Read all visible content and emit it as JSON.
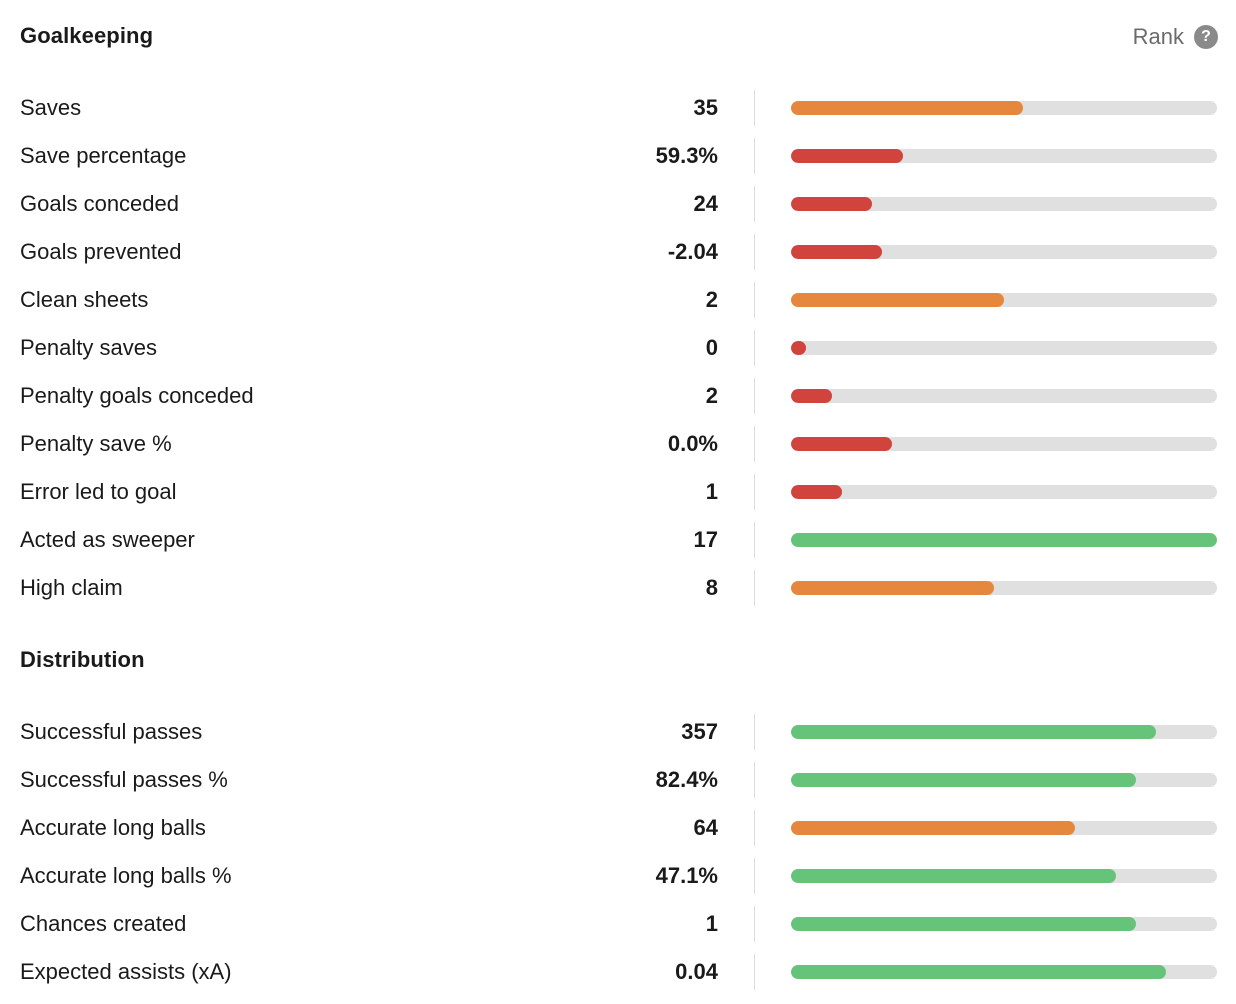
{
  "header": {
    "rank_label": "Rank",
    "help_icon": "question-mark-icon",
    "help_glyph": "?"
  },
  "colors": {
    "green": "#66c47a",
    "orange": "#e5873c",
    "red": "#d1443d",
    "track": "#e0e0e0"
  },
  "sections": [
    {
      "title": "Goalkeeping",
      "stats": [
        {
          "label": "Saves",
          "value": "35",
          "rank_fraction": 0.545,
          "color": "orange"
        },
        {
          "label": "Save percentage",
          "value": "59.3%",
          "rank_fraction": 0.263,
          "color": "red"
        },
        {
          "label": "Goals conceded",
          "value": "24",
          "rank_fraction": 0.19,
          "color": "red"
        },
        {
          "label": "Goals prevented",
          "value": "-2.04",
          "rank_fraction": 0.214,
          "color": "red"
        },
        {
          "label": "Clean sheets",
          "value": "2",
          "rank_fraction": 0.5,
          "color": "orange"
        },
        {
          "label": "Penalty saves",
          "value": "0",
          "rank_fraction": 0.035,
          "color": "red"
        },
        {
          "label": "Penalty goals conceded",
          "value": "2",
          "rank_fraction": 0.096,
          "color": "red"
        },
        {
          "label": "Penalty save %",
          "value": "0.0%",
          "rank_fraction": 0.237,
          "color": "red"
        },
        {
          "label": "Error led to goal",
          "value": "1",
          "rank_fraction": 0.12,
          "color": "red"
        },
        {
          "label": "Acted as sweeper",
          "value": "17",
          "rank_fraction": 1.0,
          "color": "green"
        },
        {
          "label": "High claim",
          "value": "8",
          "rank_fraction": 0.477,
          "color": "orange"
        }
      ]
    },
    {
      "title": "Distribution",
      "stats": [
        {
          "label": "Successful passes",
          "value": "357",
          "rank_fraction": 0.857,
          "color": "green"
        },
        {
          "label": "Successful passes %",
          "value": "82.4%",
          "rank_fraction": 0.81,
          "color": "green"
        },
        {
          "label": "Accurate long balls",
          "value": "64",
          "rank_fraction": 0.667,
          "color": "orange"
        },
        {
          "label": "Accurate long balls %",
          "value": "47.1%",
          "rank_fraction": 0.763,
          "color": "green"
        },
        {
          "label": "Chances created",
          "value": "1",
          "rank_fraction": 0.81,
          "color": "green"
        },
        {
          "label": "Expected assists (xA)",
          "value": "0.04",
          "rank_fraction": 0.88,
          "color": "green"
        }
      ]
    }
  ]
}
